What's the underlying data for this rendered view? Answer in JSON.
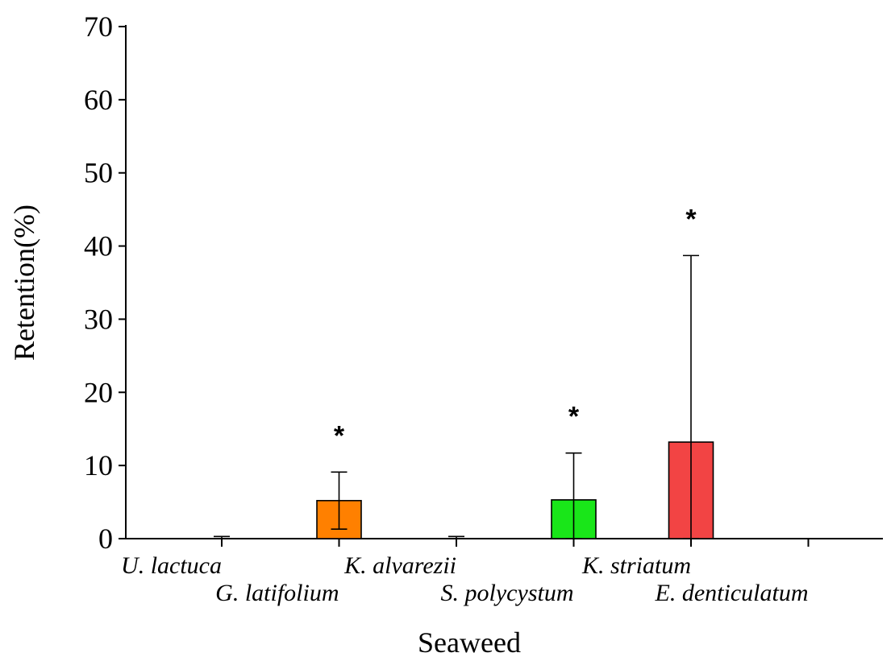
{
  "chart_data": {
    "type": "bar",
    "title": "",
    "xlabel": "Seaweed",
    "ylabel": "Retention(%)",
    "ylim": [
      0,
      70
    ],
    "yticks": [
      0,
      10,
      20,
      30,
      40,
      50,
      60,
      70
    ],
    "categories": [
      "U. lactuca",
      "G. latifolium",
      "K. alvarezii",
      "S. polycystum",
      "K. striatum",
      "E. denticulatum"
    ],
    "values": [
      0,
      5.2,
      0,
      5.3,
      13.2,
      0
    ],
    "errors": [
      0.3,
      3.9,
      0.3,
      6.4,
      25.5,
      0
    ],
    "colors": [
      "#ffffff",
      "#ff8000",
      "#ffffff",
      "#19e619",
      "#f24444",
      "#ffffff"
    ],
    "significance": [
      "",
      "*",
      "",
      "*",
      "*",
      ""
    ],
    "grid": false,
    "legend": "none"
  }
}
